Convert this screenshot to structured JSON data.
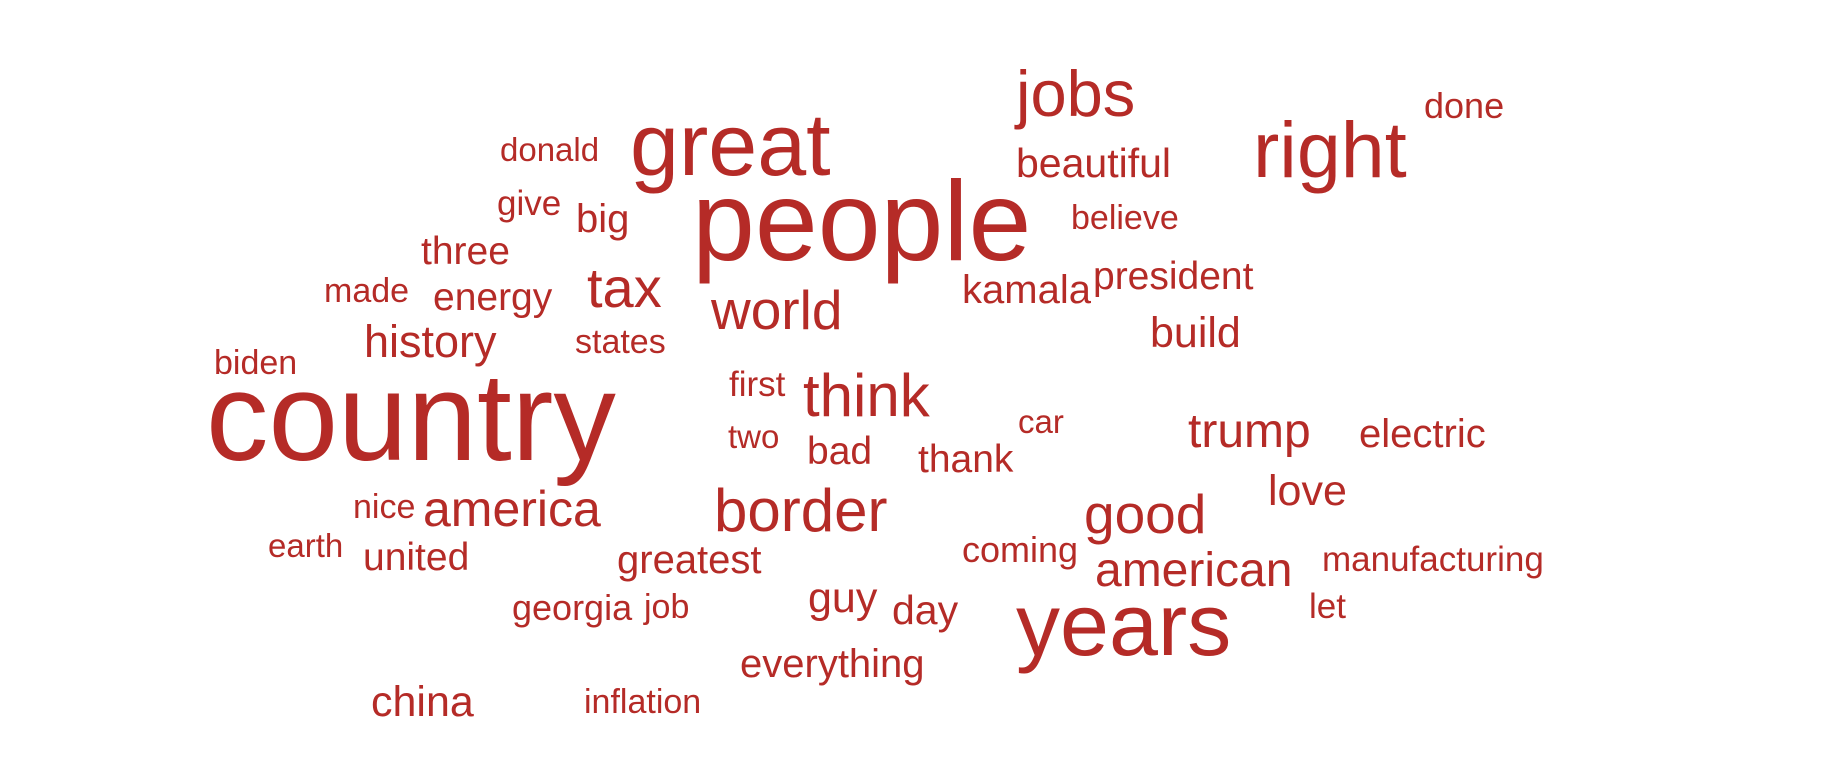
{
  "colors": {
    "word": "#b52b27",
    "background": "#ffffff"
  },
  "chart_data": {
    "type": "wordcloud",
    "words": [
      {
        "text": "country",
        "weight": 100
      },
      {
        "text": "people",
        "weight": 90
      },
      {
        "text": "great",
        "weight": 70
      },
      {
        "text": "years",
        "weight": 70
      },
      {
        "text": "right",
        "weight": 63
      },
      {
        "text": "jobs",
        "weight": 52
      },
      {
        "text": "think",
        "weight": 48
      },
      {
        "text": "border",
        "weight": 48
      },
      {
        "text": "tax",
        "weight": 45
      },
      {
        "text": "world",
        "weight": 44
      },
      {
        "text": "good",
        "weight": 44
      },
      {
        "text": "america",
        "weight": 40
      },
      {
        "text": "trump",
        "weight": 38
      },
      {
        "text": "american",
        "weight": 38
      },
      {
        "text": "history",
        "weight": 36
      },
      {
        "text": "build",
        "weight": 34
      },
      {
        "text": "china",
        "weight": 34
      },
      {
        "text": "guy",
        "weight": 34
      },
      {
        "text": "love",
        "weight": 34
      },
      {
        "text": "day",
        "weight": 33
      },
      {
        "text": "beautiful",
        "weight": 33
      },
      {
        "text": "everything",
        "weight": 32
      },
      {
        "text": "greatest",
        "weight": 32
      },
      {
        "text": "electric",
        "weight": 32
      },
      {
        "text": "big",
        "weight": 32
      },
      {
        "text": "kamala",
        "weight": 32
      },
      {
        "text": "energy",
        "weight": 31
      },
      {
        "text": "president",
        "weight": 31
      },
      {
        "text": "united",
        "weight": 31
      },
      {
        "text": "thank",
        "weight": 31
      },
      {
        "text": "bad",
        "weight": 31
      },
      {
        "text": "three",
        "weight": 31
      },
      {
        "text": "done",
        "weight": 29
      },
      {
        "text": "georgia",
        "weight": 29
      },
      {
        "text": "coming",
        "weight": 29
      },
      {
        "text": "manufacturing",
        "weight": 28
      },
      {
        "text": "give",
        "weight": 28
      },
      {
        "text": "first",
        "weight": 28
      },
      {
        "text": "let",
        "weight": 28
      },
      {
        "text": "inflation",
        "weight": 27
      },
      {
        "text": "states",
        "weight": 27
      },
      {
        "text": "believe",
        "weight": 27
      },
      {
        "text": "job",
        "weight": 27
      },
      {
        "text": "biden",
        "weight": 27
      },
      {
        "text": "made",
        "weight": 27
      },
      {
        "text": "nice",
        "weight": 27
      },
      {
        "text": "earth",
        "weight": 26
      },
      {
        "text": "donald",
        "weight": 26
      },
      {
        "text": "two",
        "weight": 26
      },
      {
        "text": "car",
        "weight": 26
      }
    ]
  }
}
